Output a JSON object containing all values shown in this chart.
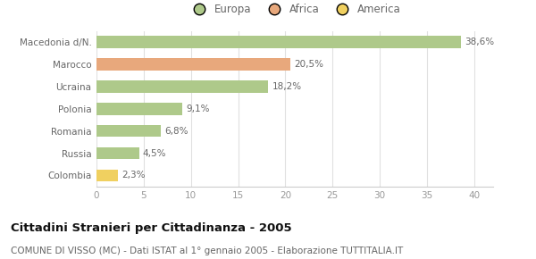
{
  "categories": [
    "Macedonia d/N.",
    "Marocco",
    "Ucraina",
    "Polonia",
    "Romania",
    "Russia",
    "Colombia"
  ],
  "values": [
    38.6,
    20.5,
    18.2,
    9.1,
    6.8,
    4.5,
    2.3
  ],
  "labels": [
    "38,6%",
    "20,5%",
    "18,2%",
    "9,1%",
    "6,8%",
    "4,5%",
    "2,3%"
  ],
  "colors": [
    "#aec98a",
    "#e8a87c",
    "#aec98a",
    "#aec98a",
    "#aec98a",
    "#aec98a",
    "#f0d060"
  ],
  "legend": [
    {
      "label": "Europa",
      "color": "#aec98a"
    },
    {
      "label": "Africa",
      "color": "#e8a87c"
    },
    {
      "label": "America",
      "color": "#f0d060"
    }
  ],
  "xlim": [
    0,
    42
  ],
  "xticks": [
    0,
    5,
    10,
    15,
    20,
    25,
    30,
    35,
    40
  ],
  "title": "Cittadini Stranieri per Cittadinanza - 2005",
  "subtitle": "COMUNE DI VISSO (MC) - Dati ISTAT al 1° gennaio 2005 - Elaborazione TUTTITALIA.IT",
  "background_color": "#ffffff",
  "bar_height": 0.55,
  "label_fontsize": 7.5,
  "tick_fontsize": 7.5,
  "title_fontsize": 9.5,
  "subtitle_fontsize": 7.5,
  "legend_fontsize": 8.5
}
